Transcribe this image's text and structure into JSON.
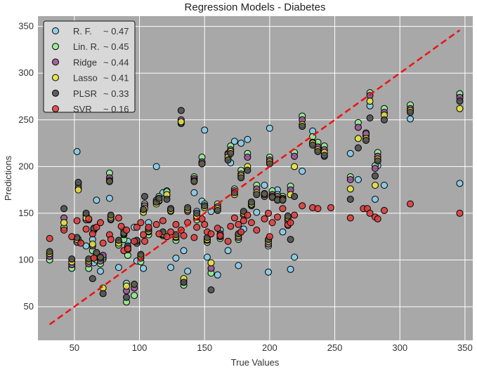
{
  "chart_data": {
    "type": "scatter",
    "title": "Regression Models - Diabetes",
    "xlabel": "True Values",
    "ylabel": "Predictions",
    "xlim": [
      22,
      356
    ],
    "ylim": [
      14,
      361
    ],
    "xticks": [
      50,
      100,
      150,
      200,
      250,
      300,
      350
    ],
    "yticks": [
      50,
      100,
      150,
      200,
      250,
      300,
      350
    ],
    "grid": true,
    "background": "#a8a8a8",
    "legend_position": "top-left",
    "reference_line": {
      "from": [
        31,
        31
      ],
      "to": [
        346,
        346
      ],
      "color": "#ee1111",
      "style": "dashed"
    },
    "series": [
      {
        "name": "R. F.",
        "score": "~ 0.47",
        "color": "#87ceeb",
        "x": [
          31,
          31,
          42,
          48,
          52,
          53,
          53,
          59,
          61,
          64,
          65,
          67,
          70,
          72,
          77,
          78,
          84,
          88,
          90,
          91,
          96,
          98,
          101,
          103,
          104,
          107,
          113,
          115,
          118,
          121,
          124,
          128,
          132,
          134,
          137,
          142,
          144,
          148,
          150,
          152,
          155,
          160,
          162,
          168,
          170,
          173,
          176,
          178,
          180,
          183,
          186,
          190,
          196,
          199,
          200,
          202,
          206,
          210,
          214,
          216,
          219,
          225,
          233,
          237,
          242,
          262,
          268,
          274,
          277,
          281,
          283,
          288,
          308,
          346,
          346
        ],
        "y": [
          106,
          101,
          134,
          92,
          216,
          183,
          120,
          115,
          143,
          122,
          97,
          164,
          88,
          101,
          166,
          143,
          92,
          132,
          75,
          120,
          135,
          99,
          105,
          91,
          160,
          140,
          200,
          163,
          172,
          174,
          92,
          102,
          246,
          110,
          88,
          172,
          152,
          163,
          239,
          103,
          152,
          84,
          132,
          110,
          204,
          227,
          94,
          225,
          133,
          229,
          158,
          151,
          180,
          87,
          241,
          168,
          175,
          130,
          137,
          90,
          103,
          195,
          238,
          220,
          211,
          214,
          186,
          233,
          265,
          165,
          201,
          180,
          251,
          277,
          182
        ]
      },
      {
        "name": "Lin. R.",
        "score": "~ 0.45",
        "color": "#90ee90",
        "x": [
          31,
          42,
          48,
          52,
          53,
          53,
          59,
          61,
          64,
          65,
          67,
          70,
          72,
          77,
          78,
          84,
          88,
          90,
          91,
          96,
          98,
          101,
          103,
          104,
          107,
          113,
          115,
          118,
          121,
          124,
          128,
          132,
          134,
          137,
          142,
          144,
          148,
          150,
          152,
          155,
          160,
          162,
          168,
          170,
          173,
          176,
          178,
          180,
          183,
          186,
          190,
          196,
          199,
          200,
          202,
          206,
          210,
          214,
          216,
          219,
          225,
          233,
          237,
          242,
          262,
          268,
          274,
          277,
          281,
          283,
          288,
          308,
          346
        ],
        "y": [
          100,
          135,
          91,
          120,
          180,
          122,
          148,
          91,
          110,
          134,
          100,
          96,
          103,
          193,
          144,
          116,
          122,
          55,
          105,
          62,
          118,
          98,
          152,
          160,
          127,
          162,
          168,
          126,
          173,
          152,
          121,
          247,
          73,
          153,
          189,
          143,
          210,
          160,
          119,
          86,
          160,
          123,
          214,
          222,
          176,
          122,
          196,
          149,
          214,
          162,
          180,
          171,
          115,
          210,
          174,
          170,
          168,
          143,
          179,
          215,
          254,
          232,
          226,
          222,
          189,
          247,
          236,
          279,
          201,
          215,
          262,
          266,
          278
        ]
      },
      {
        "name": "Ridge",
        "score": "~ 0.44",
        "color": "#9b4f96",
        "x": [
          31,
          42,
          48,
          52,
          53,
          59,
          61,
          64,
          65,
          67,
          70,
          72,
          77,
          78,
          84,
          88,
          90,
          91,
          96,
          98,
          101,
          103,
          104,
          107,
          113,
          115,
          118,
          121,
          124,
          128,
          132,
          134,
          137,
          142,
          144,
          148,
          150,
          152,
          155,
          160,
          162,
          168,
          170,
          173,
          176,
          178,
          180,
          183,
          186,
          190,
          196,
          199,
          200,
          202,
          206,
          210,
          214,
          216,
          219,
          225,
          233,
          237,
          242,
          262,
          268,
          274,
          277,
          281,
          283,
          288,
          308,
          346
        ],
        "y": [
          104,
          145,
          95,
          119,
          177,
          143,
          96,
          115,
          132,
          104,
          99,
          105,
          188,
          144,
          119,
          127,
          67,
          111,
          70,
          118,
          102,
          152,
          158,
          130,
          164,
          166,
          127,
          169,
          154,
          124,
          250,
          77,
          152,
          187,
          146,
          205,
          158,
          121,
          91,
          157,
          125,
          213,
          218,
          174,
          124,
          192,
          148,
          210,
          159,
          176,
          168,
          117,
          207,
          170,
          168,
          166,
          142,
          175,
          211,
          250,
          226,
          221,
          218,
          186,
          242,
          235,
          276,
          198,
          211,
          258,
          262,
          274
        ]
      },
      {
        "name": "Lasso",
        "score": "~ 0.41",
        "color": "#e8e83a",
        "x": [
          31,
          42,
          48,
          52,
          53,
          59,
          61,
          64,
          65,
          67,
          70,
          72,
          77,
          78,
          84,
          88,
          90,
          91,
          96,
          98,
          101,
          103,
          104,
          107,
          113,
          115,
          118,
          121,
          124,
          128,
          132,
          134,
          137,
          142,
          144,
          148,
          150,
          152,
          155,
          160,
          162,
          168,
          170,
          173,
          176,
          178,
          180,
          183,
          186,
          190,
          196,
          199,
          200,
          202,
          206,
          210,
          214,
          216,
          219,
          225,
          233,
          237,
          242,
          262,
          268,
          274,
          277,
          281,
          283,
          288,
          308,
          346
        ],
        "y": [
          107,
          140,
          98,
          122,
          175,
          145,
          99,
          117,
          133,
          106,
          102,
          70,
          185,
          146,
          118,
          128,
          72,
          113,
          74,
          120,
          104,
          151,
          155,
          131,
          160,
          164,
          128,
          170,
          153,
          125,
          248,
          80,
          154,
          185,
          147,
          203,
          156,
          122,
          97,
          155,
          127,
          210,
          216,
          170,
          126,
          190,
          150,
          200,
          160,
          172,
          170,
          120,
          205,
          168,
          165,
          165,
          145,
          170,
          200,
          245,
          225,
          218,
          215,
          176,
          230,
          230,
          270,
          180,
          208,
          255,
          260,
          262
        ]
      },
      {
        "name": "PLSR",
        "score": "~ 0.33",
        "color": "#4a4a4a",
        "x": [
          31,
          42,
          48,
          52,
          53,
          59,
          61,
          64,
          65,
          67,
          70,
          72,
          77,
          78,
          84,
          88,
          90,
          91,
          96,
          98,
          101,
          103,
          104,
          107,
          113,
          115,
          118,
          121,
          124,
          128,
          132,
          134,
          137,
          142,
          144,
          148,
          150,
          152,
          155,
          160,
          162,
          168,
          170,
          173,
          176,
          178,
          180,
          183,
          186,
          190,
          196,
          199,
          200,
          202,
          206,
          210,
          214,
          216,
          219,
          225,
          233,
          237,
          242,
          262,
          268,
          274,
          277,
          281,
          283,
          288,
          308,
          346
        ],
        "y": [
          109,
          155,
          101,
          124,
          183,
          150,
          101,
          80,
          134,
          108,
          103,
          64,
          184,
          148,
          121,
          129,
          60,
          115,
          74,
          121,
          106,
          154,
          168,
          133,
          162,
          166,
          130,
          165,
          155,
          127,
          260,
          76,
          156,
          184,
          150,
          203,
          158,
          124,
          68,
          153,
          128,
          207,
          214,
          172,
          128,
          188,
          152,
          196,
          162,
          170,
          171,
          122,
          203,
          167,
          164,
          164,
          147,
          122,
          168,
          243,
          223,
          216,
          212,
          165,
          220,
          228,
          252,
          190,
          206,
          250,
          258,
          270
        ]
      },
      {
        "name": "SVR",
        "score": "~ 0.16",
        "color": "#e03a3a",
        "x": [
          31,
          42,
          48,
          52,
          55,
          59,
          61,
          64,
          65,
          67,
          70,
          72,
          77,
          78,
          84,
          86,
          88,
          90,
          91,
          96,
          98,
          101,
          103,
          104,
          107,
          113,
          115,
          118,
          121,
          124,
          128,
          132,
          134,
          137,
          142,
          144,
          148,
          150,
          152,
          155,
          160,
          162,
          168,
          170,
          173,
          176,
          178,
          180,
          183,
          186,
          190,
          196,
          199,
          200,
          202,
          206,
          210,
          214,
          216,
          219,
          225,
          233,
          237,
          247,
          262,
          272,
          275,
          277,
          281,
          283,
          288,
          308,
          346
        ],
        "y": [
          123,
          132,
          125,
          142,
          118,
          133,
          144,
          128,
          102,
          135,
          140,
          118,
          127,
          122,
          145,
          136,
          110,
          132,
          112,
          120,
          135,
          140,
          127,
          120,
          135,
          138,
          128,
          142,
          125,
          130,
          138,
          132,
          126,
          140,
          124,
          135,
          144,
          138,
          130,
          128,
          134,
          126,
          120,
          136,
          145,
          138,
          130,
          142,
          148,
          140,
          132,
          144,
          150,
          125,
          140,
          146,
          155,
          138,
          140,
          148,
          158,
          156,
          155,
          156,
          145,
          155,
          155,
          150,
          146,
          144,
          153,
          160,
          150
        ]
      }
    ]
  }
}
